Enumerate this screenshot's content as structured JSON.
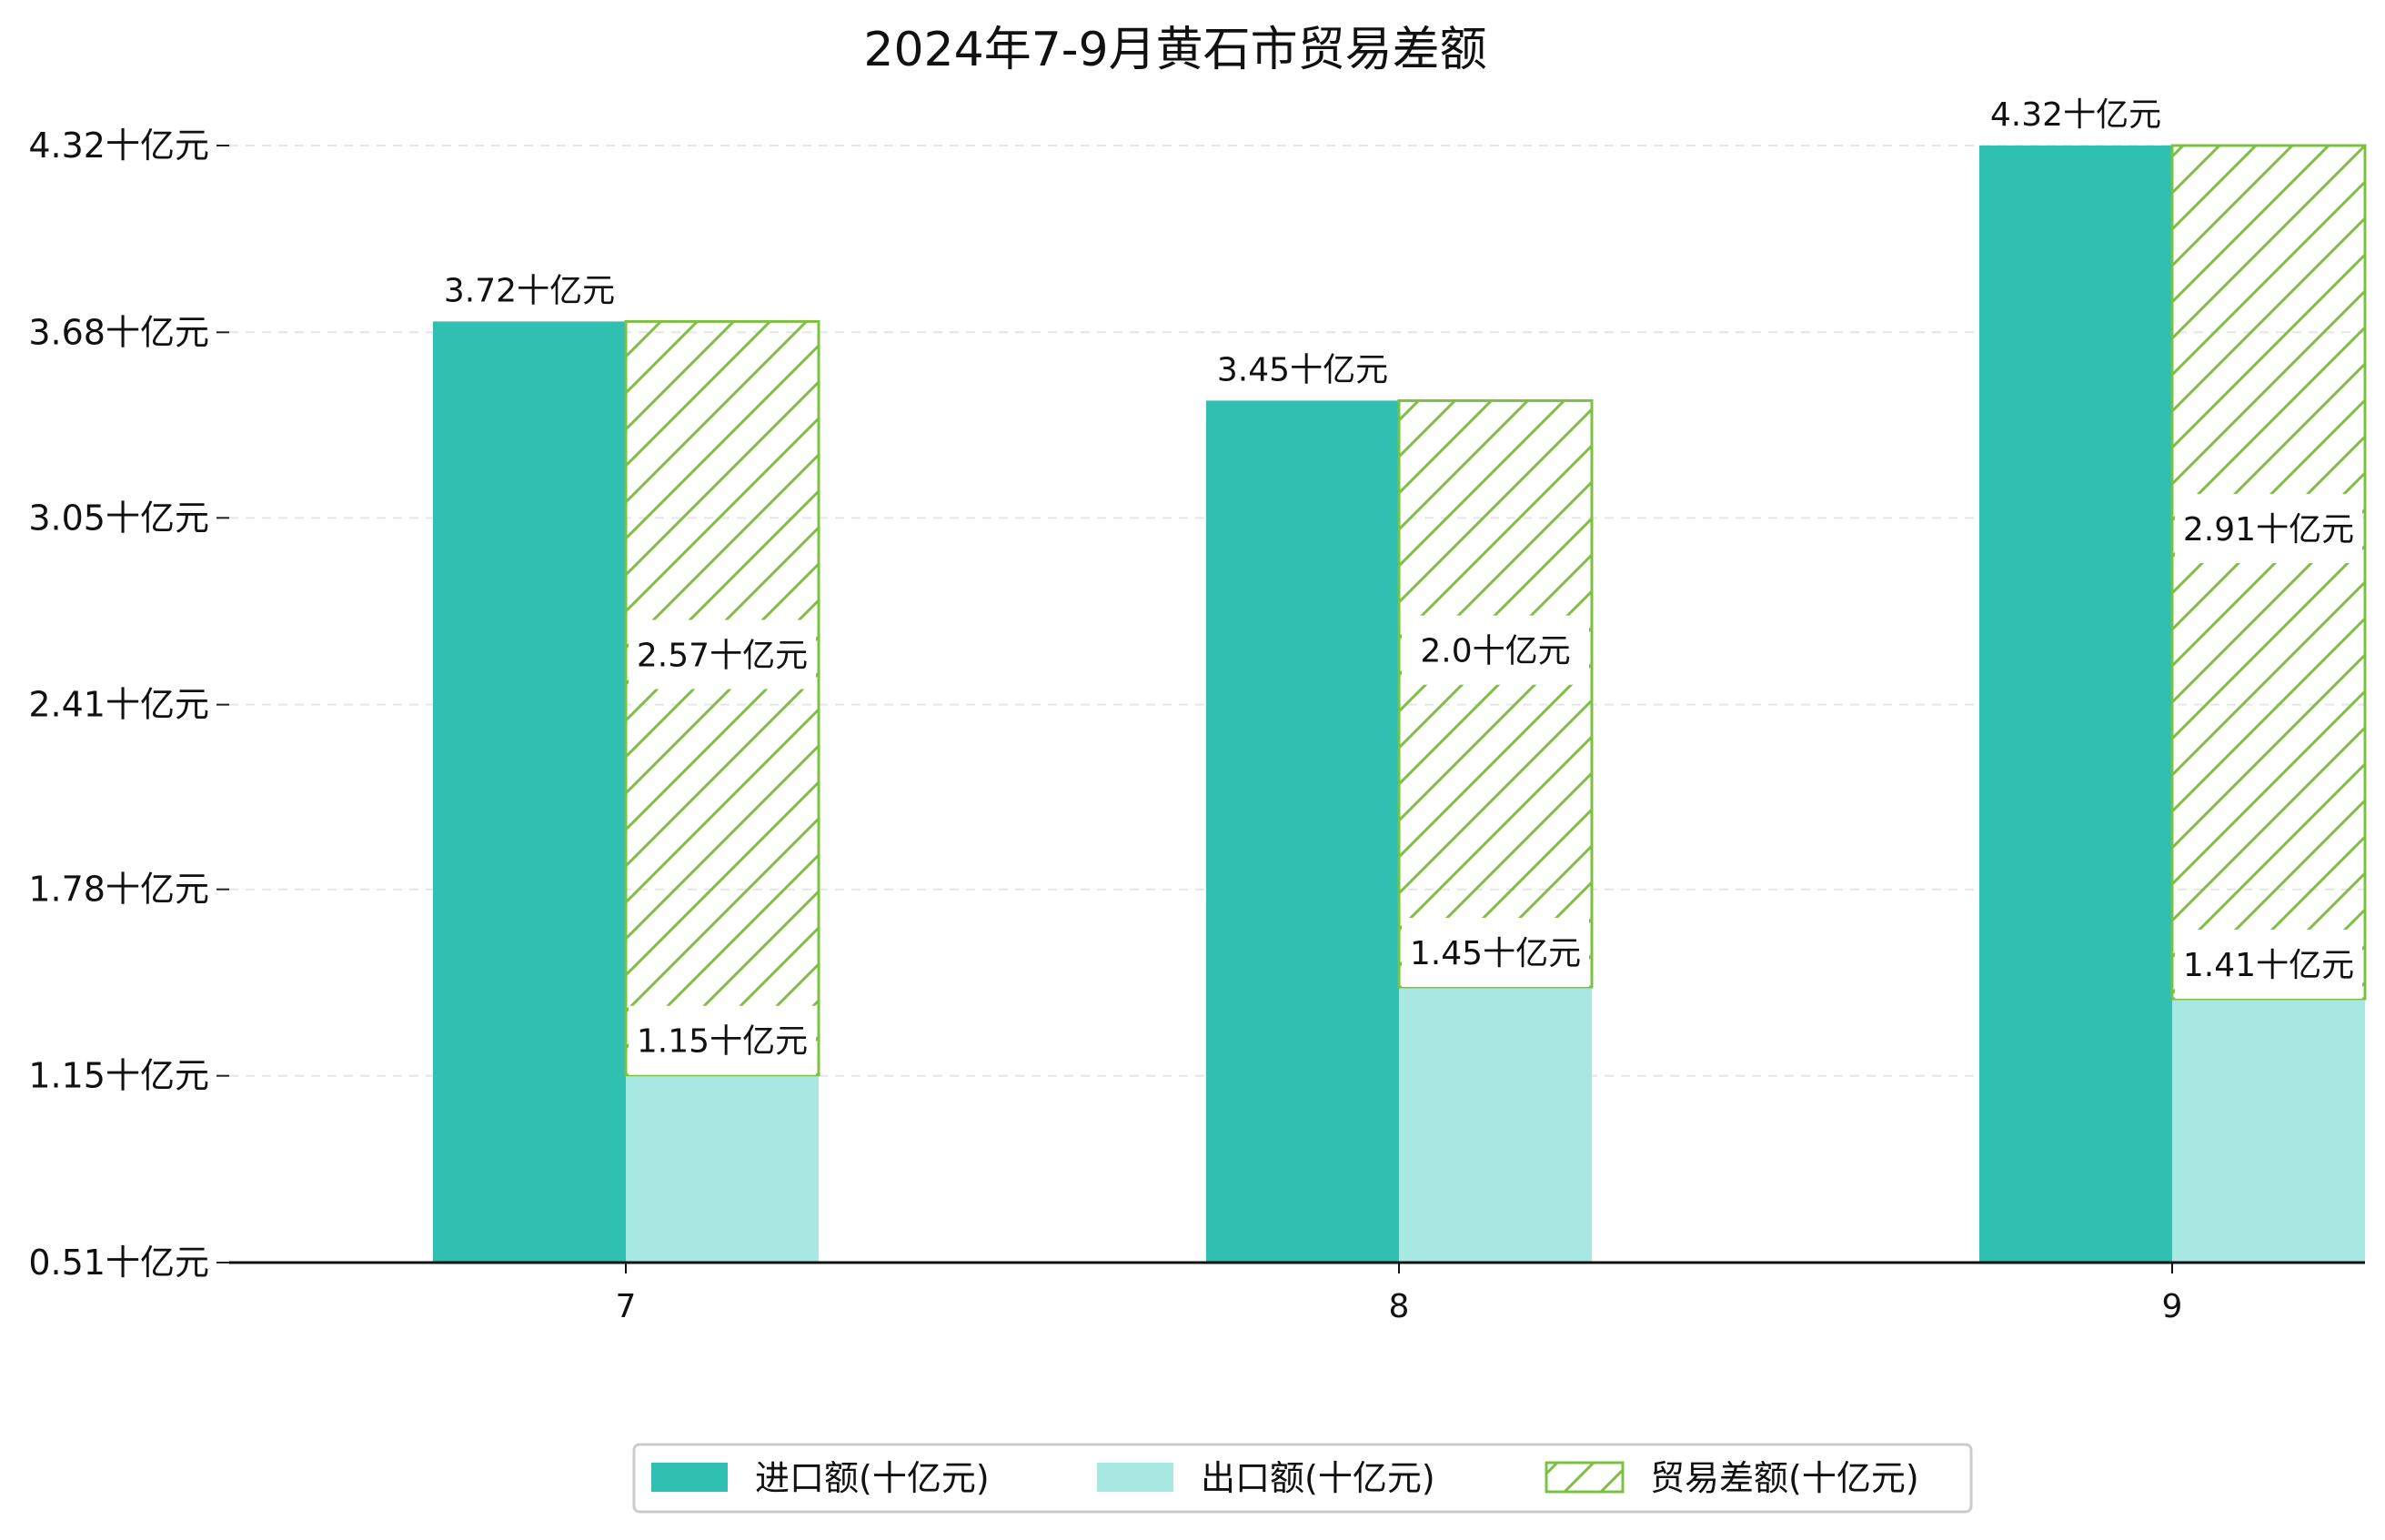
{
  "chart_data": {
    "type": "bar",
    "title": "2024年7-9月黄石市贸易差额",
    "categories": [
      "7",
      "8",
      "9"
    ],
    "y_ticks": [
      "0.51十亿元",
      "1.15十亿元",
      "1.78十亿元",
      "2.41十亿元",
      "3.05十亿元",
      "3.68十亿元",
      "4.32十亿元"
    ],
    "y_tick_values": [
      0.51,
      1.147,
      1.783,
      2.413,
      3.05,
      3.683,
      4.32
    ],
    "ylim": [
      0.51,
      4.32
    ],
    "grid": "horizontal dashed",
    "legend_position": "bottom-center",
    "stacked_series": "出口额 and 贸易差额 stacked; 进口额 side-by-side",
    "series": [
      {
        "name": "进口额(十亿元)",
        "values": [
          3.72,
          3.45,
          4.32
        ],
        "labels": [
          "3.72十亿元",
          "3.45十亿元",
          "4.32十亿元"
        ],
        "color": "#30c0b1",
        "style": "solid"
      },
      {
        "name": "出口额(十亿元)",
        "values": [
          1.15,
          1.45,
          1.41
        ],
        "labels": [
          "1.15十亿元",
          "1.45十亿元",
          "1.41十亿元"
        ],
        "color": "#a8e8e2",
        "style": "solid"
      },
      {
        "name": "贸易差额(十亿元)",
        "values": [
          2.57,
          2.0,
          2.91
        ],
        "labels": [
          "2.57十亿元",
          "2.0十亿元",
          "2.91十亿元"
        ],
        "color": "#7cc142",
        "style": "hatched"
      }
    ]
  }
}
